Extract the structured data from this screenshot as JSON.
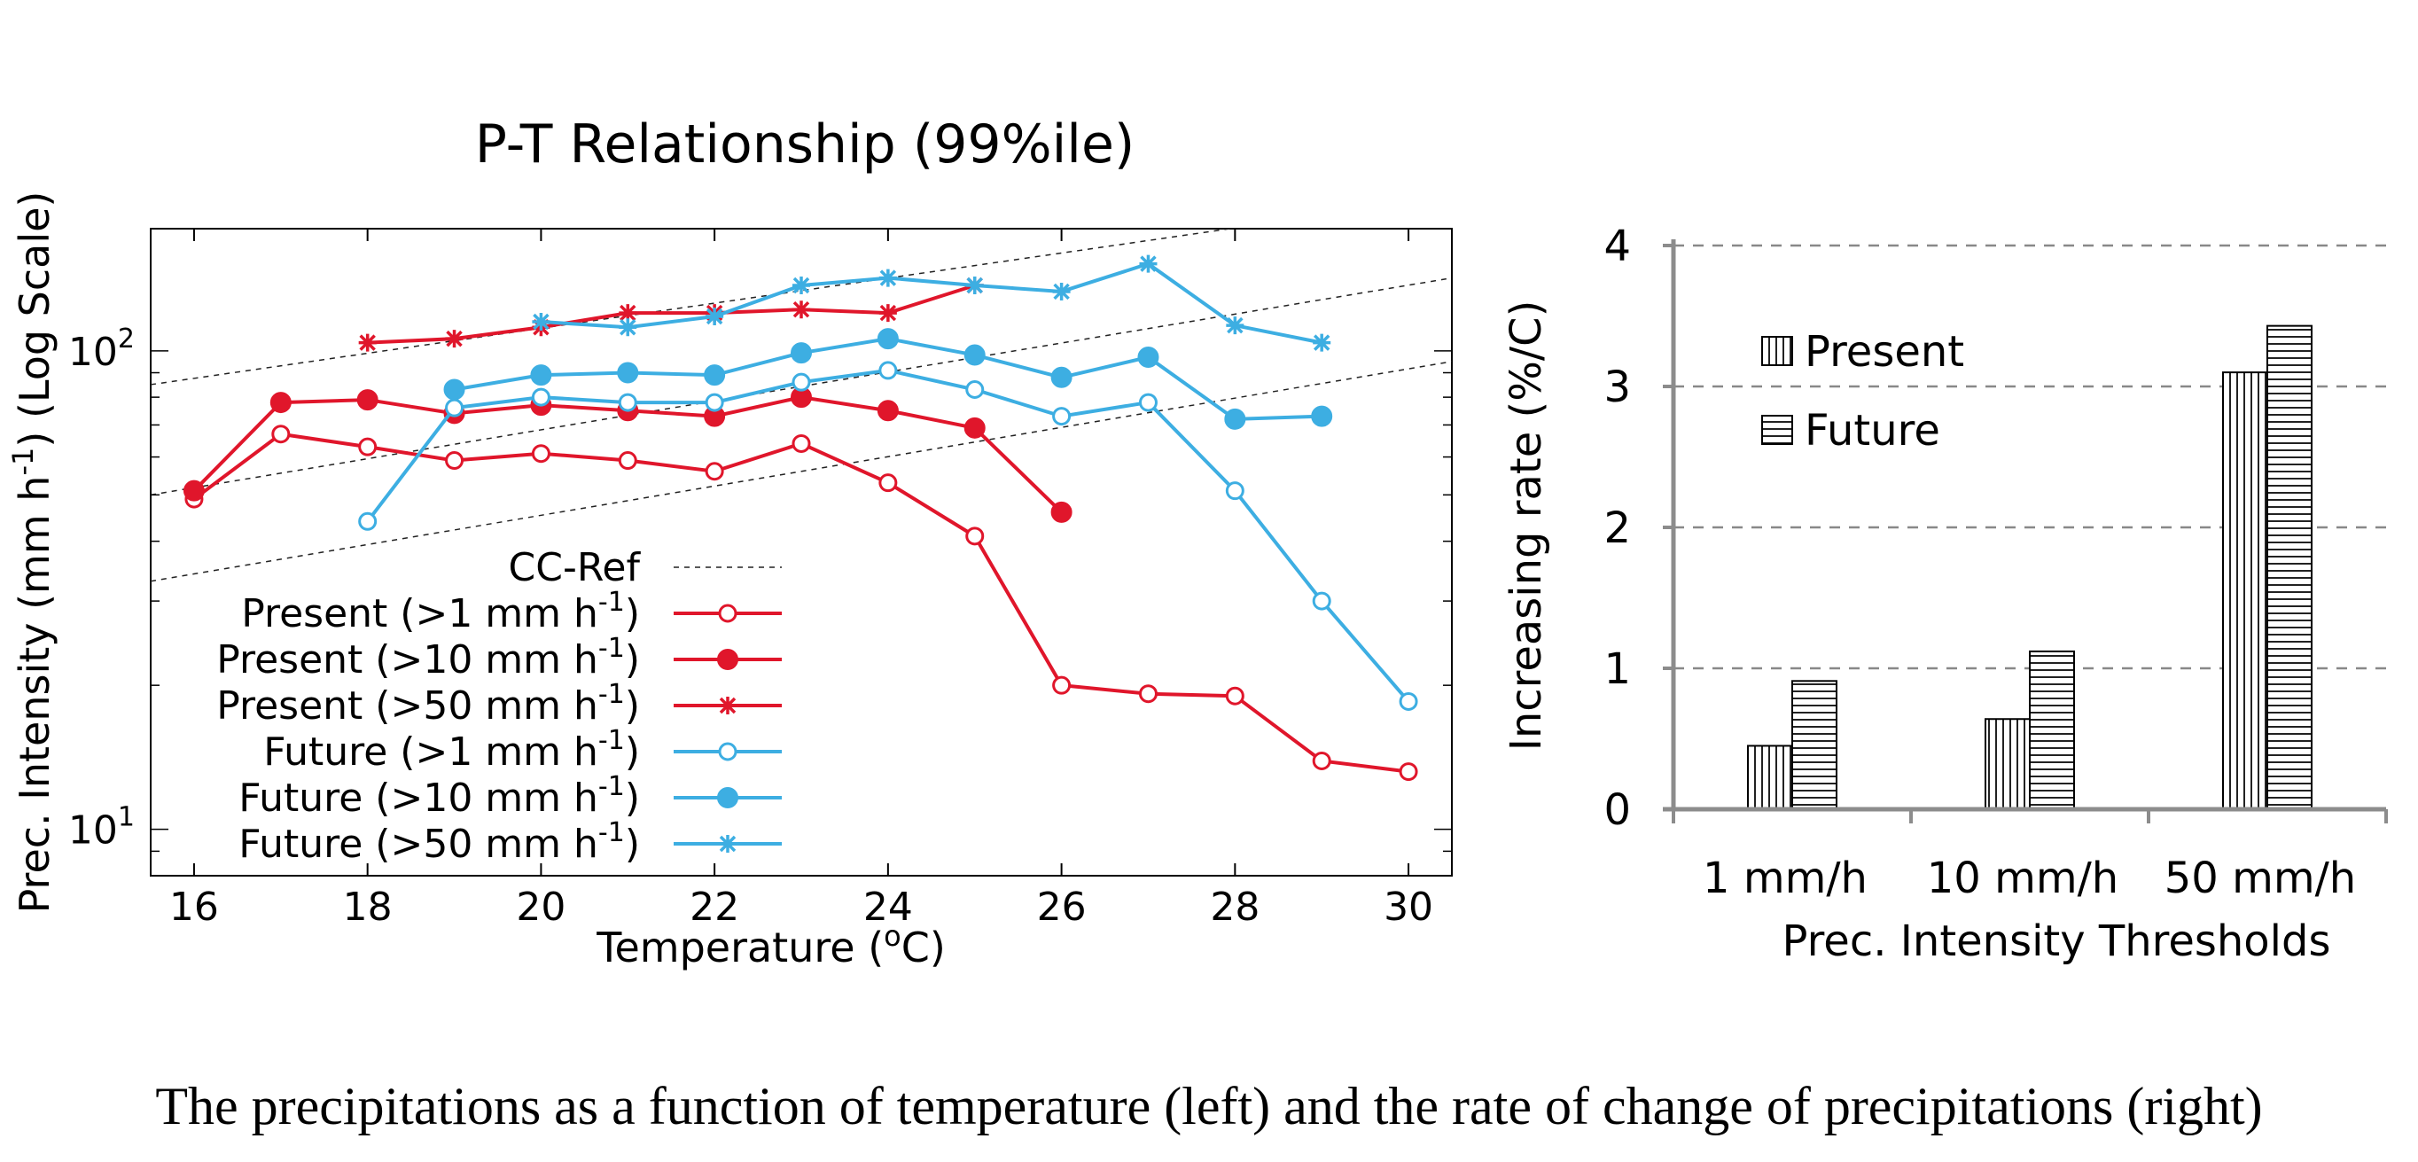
{
  "caption": "The precipitations as a function of temperature (left) and the rate of change of precipitations (right)",
  "chart_data": [
    {
      "type": "line",
      "title": "P-T Relationship (99%ile)",
      "xlabel": "Temperature (",
      "xlabel_sup": "o",
      "xlabel_end": "C)",
      "ylabel_parts": [
        "Prec. Intensity (mm h",
        "-1",
        ") (Log Scale)"
      ],
      "x_ticks": [
        "16",
        "18",
        "20",
        "22",
        "24",
        "26",
        "28",
        "30"
      ],
      "y_ticks": [
        {
          "base": "10",
          "exp": "1",
          "value": 10
        },
        {
          "base": "10",
          "exp": "2",
          "value": 100
        }
      ],
      "xlim": [
        15.5,
        30.5
      ],
      "ylim": [
        8,
        180
      ],
      "y_scale": "log",
      "legend_position": "bottom-left",
      "reference_label": "CC-Ref",
      "reference_lines": [
        {
          "x": [
            15.5,
            30.5
          ],
          "y": [
            85,
            210
          ]
        },
        {
          "x": [
            15.5,
            30.5
          ],
          "y": [
            50,
            142
          ]
        },
        {
          "x": [
            15.5,
            30.5
          ],
          "y": [
            33,
            95
          ]
        }
      ],
      "series": [
        {
          "name": "Present (>1 mm h",
          "sup": "-1",
          "end": ")",
          "color": "#e0162b",
          "marker": "open-circle",
          "x": [
            16,
            17,
            18,
            19,
            20,
            21,
            22,
            23,
            24,
            25,
            26,
            27,
            28,
            29,
            30
          ],
          "y": [
            49,
            67,
            63,
            59,
            61,
            59,
            56,
            64,
            53,
            41,
            20,
            19.2,
            19,
            13.9,
            13.2
          ]
        },
        {
          "name": "Present (>10 mm h",
          "sup": "-1",
          "end": ")",
          "color": "#e0162b",
          "marker": "filled-circle",
          "x": [
            16,
            17,
            18,
            19,
            20,
            21,
            22,
            23,
            24,
            25,
            26
          ],
          "y": [
            51,
            78,
            79,
            74,
            77,
            75,
            73,
            80,
            75,
            69,
            46
          ]
        },
        {
          "name": "Present (>50 mm h",
          "sup": "-1",
          "end": ")",
          "color": "#e0162b",
          "marker": "star",
          "x": [
            18,
            19,
            20,
            21,
            22,
            23,
            24,
            25
          ],
          "y": [
            104,
            106,
            112,
            120,
            120,
            122,
            120,
            137
          ]
        },
        {
          "name": "Future (>1 mm h",
          "sup": "-1",
          "end": ")",
          "color": "#3daee2",
          "marker": "open-circle",
          "x": [
            18,
            19,
            20,
            21,
            22,
            23,
            24,
            25,
            26,
            27,
            28,
            29,
            30
          ],
          "y": [
            44,
            76,
            80,
            78,
            78,
            86,
            91,
            83,
            73,
            78,
            51,
            30,
            18.5
          ]
        },
        {
          "name": "Future (>10 mm h",
          "sup": "-1",
          "end": ")",
          "color": "#3daee2",
          "marker": "filled-circle",
          "x": [
            19,
            20,
            21,
            22,
            23,
            24,
            25,
            26,
            27,
            28,
            29
          ],
          "y": [
            83,
            89,
            90,
            89,
            99,
            106,
            98,
            88,
            97,
            72,
            73
          ]
        },
        {
          "name": "Future (>50 mm h",
          "sup": "-1",
          "end": ")",
          "color": "#3daee2",
          "marker": "star",
          "x": [
            20,
            21,
            22,
            23,
            24,
            25,
            26,
            27,
            28,
            29
          ],
          "y": [
            115,
            112,
            118,
            137,
            142,
            137,
            133,
            152,
            113,
            104
          ]
        }
      ]
    },
    {
      "type": "bar",
      "title": "",
      "xlabel": "Prec. Intensity Thresholds",
      "ylabel": "Increasing rate (%/C)",
      "categories": [
        "1 mm/h",
        "10 mm/h",
        "50 mm/h"
      ],
      "ylim": [
        0,
        4
      ],
      "y_ticks": [
        "0",
        "1",
        "2",
        "3",
        "4"
      ],
      "grid": "horizontal-dashed",
      "legend_position": "top-left",
      "series": [
        {
          "name": "Present",
          "pattern": "vertical-hatch",
          "values": [
            0.45,
            0.64,
            3.1
          ]
        },
        {
          "name": "Future",
          "pattern": "horizontal-hatch",
          "values": [
            0.91,
            1.12,
            3.43
          ]
        }
      ]
    }
  ]
}
